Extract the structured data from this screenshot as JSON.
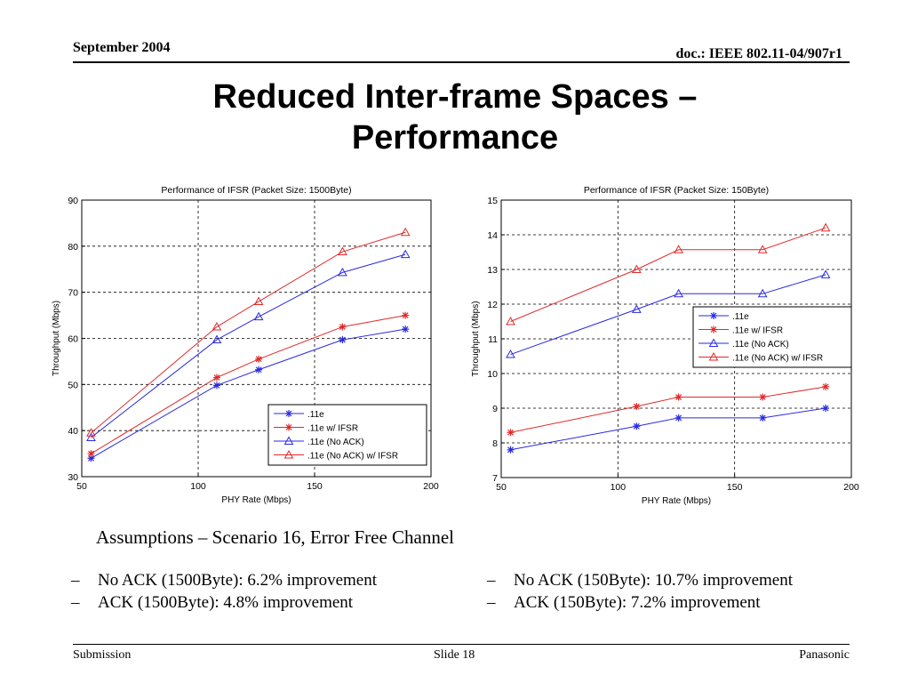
{
  "header": {
    "date": "September 2004",
    "doc": "doc.: IEEE 802.11-04/907r1"
  },
  "title_line1": "Reduced Inter-frame Spaces –",
  "title_line2": "Performance",
  "chart_data": [
    {
      "type": "line",
      "title": "Performance of IFSR (Packet Size: 1500Byte)",
      "xlabel": "PHY Rate (Mbps)",
      "ylabel": "Throughput (Mbps)",
      "xlim": [
        50,
        200
      ],
      "ylim": [
        30,
        90
      ],
      "xticks": [
        50,
        100,
        150,
        200
      ],
      "yticks": [
        30,
        40,
        50,
        60,
        70,
        80,
        90
      ],
      "grid": true,
      "legend": "bottom-right",
      "x": [
        54,
        108,
        126,
        162,
        189
      ],
      "series": [
        {
          "name": ".11e",
          "color": "#2a2ae0",
          "marker": "star",
          "values": [
            34,
            49.8,
            53.2,
            59.7,
            62
          ]
        },
        {
          "name": ".11e w/ IFSR",
          "color": "#e02a2a",
          "marker": "star",
          "values": [
            35,
            51.5,
            55.5,
            62.5,
            65
          ]
        },
        {
          "name": ".11e (No ACK)",
          "color": "#2a2ae0",
          "marker": "triangle",
          "values": [
            38.5,
            59.7,
            64.7,
            74.3,
            78.2
          ]
        },
        {
          "name": ".11e (No ACK) w/ IFSR",
          "color": "#e02a2a",
          "marker": "triangle",
          "values": [
            39.5,
            62.5,
            68,
            78.8,
            83
          ]
        }
      ]
    },
    {
      "type": "line",
      "title": "Performance of IFSR (Packet Size: 150Byte)",
      "xlabel": "PHY Rate (Mbps)",
      "ylabel": "Throughput (Mbps)",
      "xlim": [
        50,
        200
      ],
      "ylim": [
        7,
        15
      ],
      "xticks": [
        50,
        100,
        150,
        200
      ],
      "yticks": [
        7,
        8,
        9,
        10,
        11,
        12,
        13,
        14,
        15
      ],
      "grid": true,
      "legend": "center-right",
      "x": [
        54,
        108,
        126,
        162,
        189
      ],
      "series": [
        {
          "name": ".11e",
          "color": "#2a2ae0",
          "marker": "star",
          "values": [
            7.8,
            8.48,
            8.72,
            8.72,
            9
          ]
        },
        {
          "name": ".11e w/ IFSR",
          "color": "#e02a2a",
          "marker": "star",
          "values": [
            8.3,
            9.05,
            9.32,
            9.32,
            9.62
          ]
        },
        {
          "name": ".11e (No ACK)",
          "color": "#2a2ae0",
          "marker": "triangle",
          "values": [
            10.55,
            11.85,
            12.3,
            12.3,
            12.85
          ]
        },
        {
          "name": ".11e (No ACK) w/ IFSR",
          "color": "#e02a2a",
          "marker": "triangle",
          "values": [
            11.5,
            13,
            13.57,
            13.57,
            14.2
          ]
        }
      ]
    }
  ],
  "assumptions": "Assumptions – Scenario 16, Error Free Channel",
  "bullets_left": [
    "No ACK (1500Byte): 6.2% improvement",
    "ACK (1500Byte): 4.8% improvement"
  ],
  "bullets_right": [
    "No ACK (150Byte): 10.7% improvement",
    "ACK (150Byte): 7.2% improvement"
  ],
  "dash": "–",
  "footer": {
    "left": "Submission",
    "center": "Slide 18",
    "right": "Panasonic"
  }
}
